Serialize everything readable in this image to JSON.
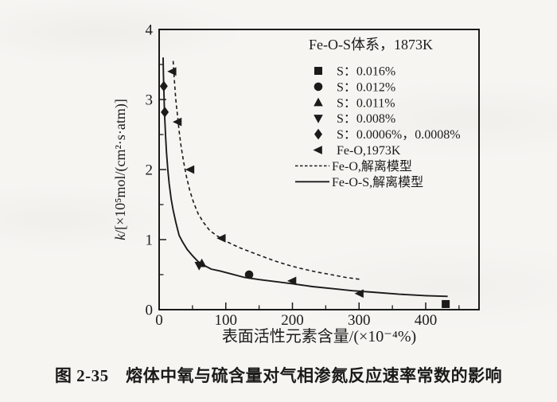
{
  "page": {
    "caption": "图 2-35　熔体中氧与硫含量对气相渗氮反应速率常数的影响"
  },
  "chart_data": {
    "type": "scatter",
    "title": "Fe-O-S体系，1873K",
    "xlabel": "表面活性元素含量/(×10⁻⁴%)",
    "ylabel": "k/[×10⁵mol/(cm²·s·atm)]",
    "xlim": [
      0,
      480
    ],
    "ylim": [
      0,
      4
    ],
    "x_major_ticks": [
      0,
      100,
      200,
      300,
      400
    ],
    "x_minor_ticks": [
      50,
      150,
      250,
      350,
      450
    ],
    "y_major_ticks": [
      0,
      1,
      2,
      3,
      4
    ],
    "y_minor_ticks": [
      0.5,
      1.5,
      2.5,
      3.5
    ],
    "grid": false,
    "legend_position": "top-right-inside",
    "colors": {
      "ink": "#1b1b1b",
      "paper": "#f6f5f2"
    },
    "series": [
      {
        "name": "S：0.016%",
        "marker": "square",
        "points": [
          [
            430,
            0.08
          ]
        ]
      },
      {
        "name": "S：0.012%",
        "marker": "circle",
        "points": [
          [
            135,
            0.5
          ]
        ]
      },
      {
        "name": "S：0.011%",
        "marker": "triangle-up",
        "points": [
          [
            64,
            0.66
          ]
        ]
      },
      {
        "name": "S：0.008%",
        "marker": "triangle-down",
        "points": [
          [
            60,
            0.63
          ]
        ]
      },
      {
        "name": "S：0.0006%，0.0008%",
        "marker": "diamond",
        "points": [
          [
            7,
            3.19
          ],
          [
            8.5,
            2.82
          ]
        ]
      },
      {
        "name": "Fe-O,1973K",
        "marker": "triangle-left",
        "points": [
          [
            20,
            3.4
          ],
          [
            28,
            2.68
          ],
          [
            47,
            2.0
          ],
          [
            94,
            1.02
          ],
          [
            200,
            0.41
          ],
          [
            301,
            0.23
          ]
        ]
      },
      {
        "name": "Fe-O,解离模型",
        "line": "dashed",
        "points": [
          [
            21,
            3.55
          ],
          [
            23,
            3.25
          ],
          [
            25,
            3.0
          ],
          [
            27.5,
            2.78
          ],
          [
            30,
            2.55
          ],
          [
            33,
            2.33
          ],
          [
            36.5,
            2.12
          ],
          [
            41,
            1.9
          ],
          [
            46,
            1.7
          ],
          [
            52,
            1.52
          ],
          [
            59,
            1.36
          ],
          [
            67,
            1.24
          ],
          [
            76,
            1.13
          ],
          [
            86,
            1.06
          ],
          [
            96,
            1.0
          ],
          [
            108,
            0.94
          ],
          [
            122,
            0.88
          ],
          [
            138,
            0.82
          ],
          [
            155,
            0.76
          ],
          [
            172,
            0.7
          ],
          [
            192,
            0.64
          ],
          [
            212,
            0.59
          ],
          [
            235,
            0.54
          ],
          [
            258,
            0.5
          ],
          [
            280,
            0.46
          ],
          [
            304,
            0.43
          ]
        ]
      },
      {
        "name": "Fe-O-S,解离模型",
        "line": "solid",
        "points": [
          [
            6,
            3.6
          ],
          [
            6.5,
            3.35
          ],
          [
            7,
            3.15
          ],
          [
            7.8,
            2.9
          ],
          [
            8.6,
            2.7
          ],
          [
            9.6,
            2.5
          ],
          [
            11,
            2.25
          ],
          [
            13,
            2.0
          ],
          [
            15,
            1.8
          ],
          [
            18,
            1.58
          ],
          [
            21,
            1.42
          ],
          [
            25,
            1.25
          ],
          [
            30,
            1.06
          ],
          [
            35,
            0.97
          ],
          [
            42,
            0.86
          ],
          [
            50,
            0.77
          ],
          [
            58,
            0.69
          ],
          [
            66,
            0.64
          ],
          [
            78,
            0.58
          ],
          [
            92,
            0.55
          ],
          [
            108,
            0.51
          ],
          [
            128,
            0.46
          ],
          [
            150,
            0.43
          ],
          [
            175,
            0.4
          ],
          [
            200,
            0.37
          ],
          [
            230,
            0.33
          ],
          [
            260,
            0.3
          ],
          [
            290,
            0.27
          ],
          [
            320,
            0.25
          ],
          [
            360,
            0.22
          ],
          [
            400,
            0.2
          ],
          [
            433,
            0.19
          ]
        ]
      }
    ]
  }
}
